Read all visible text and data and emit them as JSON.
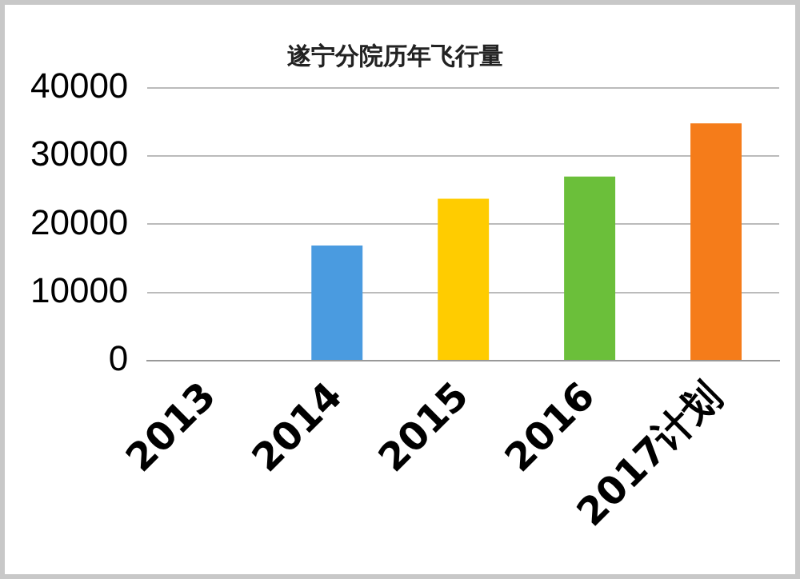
{
  "chart_data": {
    "type": "bar",
    "title": "遂宁分院历年飞行量",
    "categories": [
      "2013",
      "2014",
      "2015",
      "2016",
      "2017计划"
    ],
    "values": [
      null,
      16900,
      23750,
      27000,
      34800
    ],
    "colors": [
      "#4a9be0",
      "#4a9be0",
      "#ffcc00",
      "#6bbf3a",
      "#f57c1a"
    ],
    "ylim": [
      0,
      40000
    ],
    "yticks": [
      0,
      10000,
      20000,
      30000,
      40000
    ],
    "grid": "y",
    "legend": false
  }
}
